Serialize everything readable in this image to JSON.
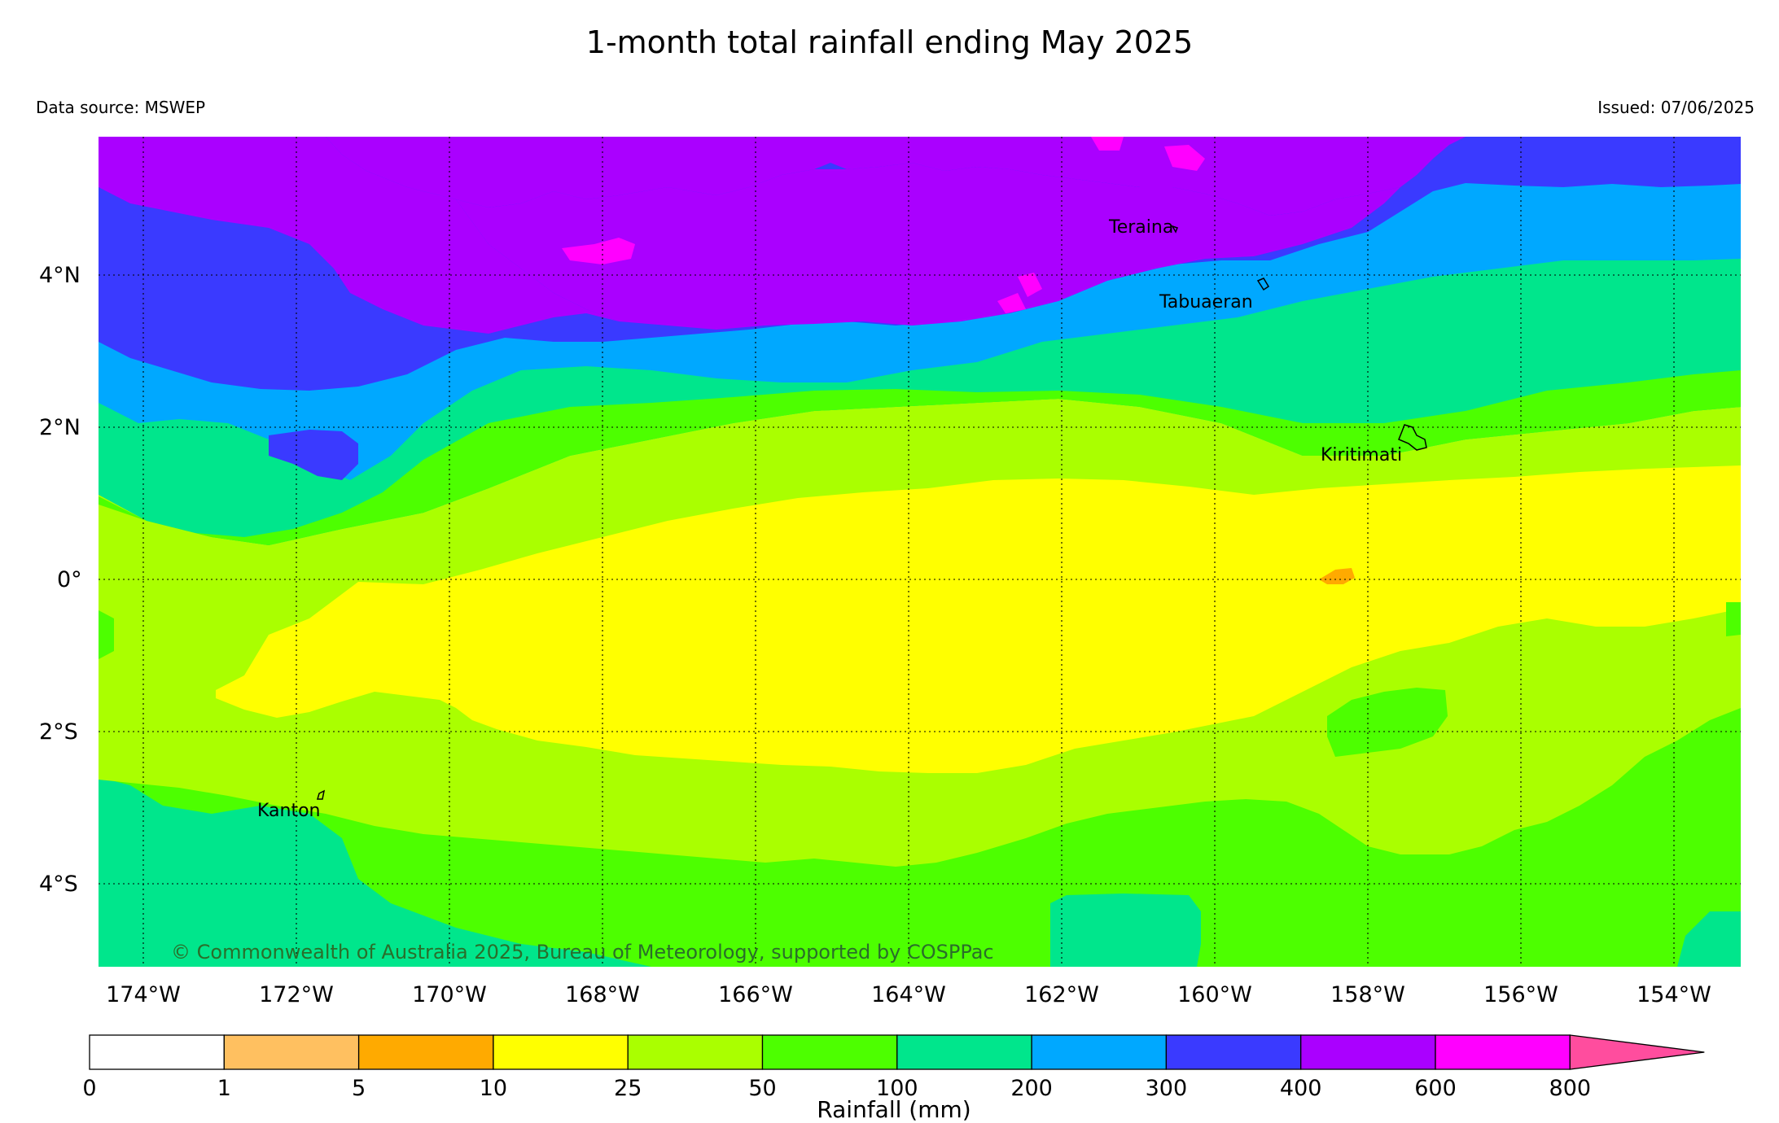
{
  "header": {
    "title": "1-month total rainfall ending May 2025",
    "source": "Data source: MSWEP",
    "issued": "Issued: 07/06/2025"
  },
  "map": {
    "lon_labels": [
      "174°W",
      "172°W",
      "170°W",
      "168°W",
      "166°W",
      "164°W",
      "162°W",
      "160°W",
      "158°W",
      "156°W",
      "154°W"
    ],
    "lat_labels": [
      "4°N",
      "2°N",
      "0°",
      "2°S",
      "4°S"
    ],
    "places": {
      "teraina": "Teraina",
      "tabuaeran": "Tabuaeran",
      "kiritimati": "Kiritimati",
      "kanton": "Kanton"
    },
    "copyright": "© Commonwealth of Australia 2025, Bureau of Meteorology, supported by COSPPac",
    "extent": {
      "lon_min": -174.6,
      "lon_max": -153.0,
      "lat_min": -5.1,
      "lat_max": 5.8
    },
    "band_colors": {
      "25-50": "#aaff00",
      "10-25": "#ffff00",
      "50-100": "#4dff00",
      "100-200": "#00e68c",
      "200-300": "#00a8ff",
      "300-400": "#3a3aff",
      "400-600": "#aa00ff",
      "600-800": "#ff00ff",
      "5-10": "#ffaa00"
    }
  },
  "legend": {
    "unit": "Rainfall (mm)",
    "ticks": [
      "0",
      "1",
      "5",
      "10",
      "25",
      "50",
      "100",
      "200",
      "300",
      "400",
      "600",
      "800"
    ],
    "colors": [
      "#ffffff",
      "#ffc060",
      "#ffaa00",
      "#ffff00",
      "#aaff00",
      "#4dff00",
      "#00e68c",
      "#00a8ff",
      "#3a3aff",
      "#aa00ff",
      "#ff00ff"
    ],
    "overflow_color": "#ff4d9e"
  }
}
